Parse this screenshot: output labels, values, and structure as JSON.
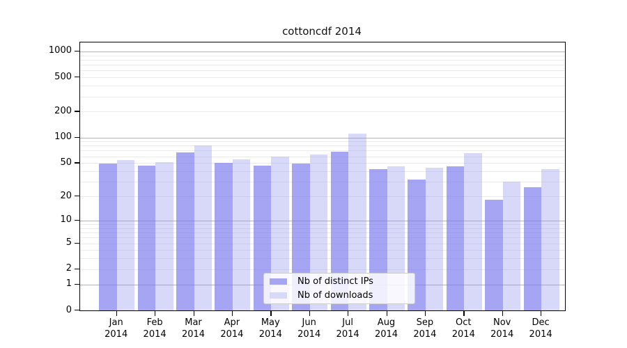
{
  "chart_data": {
    "type": "bar",
    "title": "cottoncdf 2014",
    "categories": [
      "Jan 2014",
      "Feb 2014",
      "Mar 2014",
      "Apr 2014",
      "May 2014",
      "Jun 2014",
      "Jul 2014",
      "Aug 2014",
      "Sep 2014",
      "Oct 2014",
      "Nov 2014",
      "Dec 2014"
    ],
    "category_months": [
      "Jan",
      "Feb",
      "Mar",
      "Apr",
      "May",
      "Jun",
      "Jul",
      "Aug",
      "Sep",
      "Oct",
      "Nov",
      "Dec"
    ],
    "category_year": "2014",
    "series": [
      {
        "name": "Nb of distinct IPs",
        "color": "#a5a5f1",
        "values": [
          49,
          47,
          67,
          50,
          47,
          49,
          68,
          42,
          32,
          46,
          18,
          26
        ]
      },
      {
        "name": "Nb of downloads",
        "color": "#d8d8f7",
        "values": [
          54,
          51,
          80,
          55,
          60,
          63,
          110,
          46,
          44,
          65,
          30,
          42
        ]
      }
    ],
    "xlabel": "",
    "ylabel": "",
    "y_scale": "log10(1+y)",
    "y_tick_values": [
      1000,
      500,
      200,
      100,
      50,
      20,
      10,
      5,
      2,
      1,
      0
    ],
    "y_tick_labels": [
      "1000",
      "500",
      "200",
      "100",
      "50",
      "20",
      "10",
      "5",
      "2",
      "1",
      "0"
    ],
    "y_major_gridline_values": [
      1,
      10,
      100,
      1000
    ],
    "y_minor_gridline_decades": [
      1,
      10,
      100
    ],
    "ylim_top": 1297,
    "grid": true,
    "legend": {
      "position": "inside-bottom-center",
      "entries": [
        "Nb of distinct IPs",
        "Nb of downloads"
      ]
    },
    "colors": {
      "major_grid": "#b3b3b3",
      "minor_grid": "#ebebeb",
      "axis": "#000000",
      "distinct_ips_bar": "#a5a5f1",
      "downloads_bar": "#d8d8f7"
    }
  }
}
